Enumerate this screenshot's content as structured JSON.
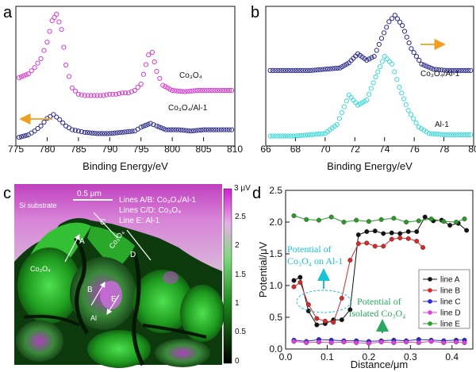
{
  "panel_labels": {
    "a": "a",
    "b": "b",
    "c": "c",
    "d": "d"
  },
  "colors": {
    "magenta": "#d63fd0",
    "navy": "#2d2d8a",
    "cyan": "#3fd8d8",
    "orange": "#f0a020",
    "cyan_text": "#19c3d6",
    "green_text": "#2aa860"
  },
  "chart_data": [
    {
      "panel": "a",
      "type": "scatter",
      "xlabel": "Binding Energy/eV",
      "xlim": [
        775,
        810
      ],
      "x_ticks": [
        775,
        780,
        785,
        790,
        795,
        800,
        805,
        810
      ],
      "series": [
        {
          "name": "Co3O4",
          "label": "Co₃O₄",
          "points": [
            [
              775.5,
              0.5
            ],
            [
              777,
              0.53
            ],
            [
              778,
              0.58
            ],
            [
              779,
              0.65
            ],
            [
              780,
              0.78
            ],
            [
              780.8,
              0.95
            ],
            [
              781.5,
              1.0
            ],
            [
              782.3,
              0.88
            ],
            [
              783,
              0.6
            ],
            [
              784,
              0.42
            ],
            [
              785,
              0.37
            ],
            [
              786,
              0.36
            ],
            [
              787,
              0.36
            ],
            [
              788,
              0.36
            ],
            [
              789,
              0.36
            ],
            [
              790,
              0.37
            ],
            [
              791,
              0.37
            ],
            [
              792,
              0.38
            ],
            [
              793,
              0.38
            ],
            [
              794,
              0.4
            ],
            [
              795,
              0.45
            ],
            [
              796.2,
              0.68
            ],
            [
              796.8,
              0.7
            ],
            [
              797.5,
              0.55
            ],
            [
              798.5,
              0.44
            ],
            [
              800,
              0.4
            ],
            [
              802,
              0.39
            ],
            [
              804,
              0.4
            ],
            [
              806,
              0.4
            ],
            [
              808,
              0.4
            ],
            [
              809.5,
              0.4
            ]
          ]
        },
        {
          "name": "Co3O4/Al-1",
          "label": "Co₃O₄/Al-1",
          "points": [
            [
              775.5,
              0.03
            ],
            [
              777,
              0.05
            ],
            [
              778,
              0.08
            ],
            [
              779,
              0.12
            ],
            [
              780,
              0.18
            ],
            [
              781,
              0.21
            ],
            [
              782,
              0.17
            ],
            [
              783,
              0.12
            ],
            [
              784,
              0.09
            ],
            [
              785,
              0.08
            ],
            [
              786,
              0.07
            ],
            [
              788,
              0.06
            ],
            [
              790,
              0.06
            ],
            [
              792,
              0.07
            ],
            [
              794,
              0.08
            ],
            [
              795,
              0.11
            ],
            [
              796.5,
              0.14
            ],
            [
              797.5,
              0.12
            ],
            [
              799,
              0.09
            ],
            [
              801,
              0.09
            ],
            [
              803,
              0.08
            ],
            [
              805,
              0.09
            ],
            [
              807,
              0.09
            ],
            [
              809.5,
              0.09
            ]
          ]
        }
      ]
    },
    {
      "panel": "b",
      "type": "scatter",
      "xlabel": "Binding Energy/eV",
      "xlim": [
        66,
        80
      ],
      "x_ticks": [
        66,
        68,
        70,
        72,
        74,
        76,
        78,
        80
      ],
      "series": [
        {
          "name": "Co3O4/Al-1",
          "label": "Co₃O₄/Al-1",
          "points": [
            [
              66.3,
              0.55
            ],
            [
              67,
              0.55
            ],
            [
              68,
              0.55
            ],
            [
              69,
              0.55
            ],
            [
              70,
              0.56
            ],
            [
              71,
              0.57
            ],
            [
              71.6,
              0.61
            ],
            [
              72.2,
              0.68
            ],
            [
              72.8,
              0.63
            ],
            [
              73.3,
              0.66
            ],
            [
              73.8,
              0.8
            ],
            [
              74.3,
              0.93
            ],
            [
              74.7,
              0.98
            ],
            [
              75.2,
              0.9
            ],
            [
              75.8,
              0.72
            ],
            [
              76.5,
              0.6
            ],
            [
              77.3,
              0.56
            ],
            [
              78.2,
              0.55
            ],
            [
              79,
              0.55
            ],
            [
              79.8,
              0.55
            ]
          ]
        },
        {
          "name": "Al-1",
          "label": "Al-1",
          "points": [
            [
              66.3,
              0.04
            ],
            [
              67,
              0.04
            ],
            [
              68,
              0.04
            ],
            [
              69,
              0.05
            ],
            [
              70,
              0.06
            ],
            [
              70.8,
              0.13
            ],
            [
              71.6,
              0.36
            ],
            [
              72.2,
              0.28
            ],
            [
              72.8,
              0.32
            ],
            [
              73.4,
              0.5
            ],
            [
              74.0,
              0.66
            ],
            [
              74.5,
              0.6
            ],
            [
              75.0,
              0.42
            ],
            [
              75.6,
              0.24
            ],
            [
              76.3,
              0.11
            ],
            [
              77,
              0.06
            ],
            [
              78,
              0.05
            ],
            [
              79,
              0.05
            ],
            [
              79.8,
              0.05
            ]
          ]
        }
      ]
    },
    {
      "panel": "d",
      "type": "line",
      "xlabel": "Distance/μm",
      "ylabel": "Potential/μV",
      "xlim": [
        0.0,
        0.45
      ],
      "ylim": [
        0.0,
        2.5
      ],
      "x_ticks": [
        0.0,
        0.1,
        0.2,
        0.3,
        0.4
      ],
      "y_ticks": [
        0.0,
        0.5,
        1.0,
        1.5,
        2.0,
        2.5
      ],
      "series": [
        {
          "name": "line A",
          "color": "#111111",
          "x": [
            0.02,
            0.035,
            0.055,
            0.075,
            0.095,
            0.115,
            0.135,
            0.155,
            0.175,
            0.195,
            0.215,
            0.235,
            0.255,
            0.275,
            0.295,
            0.315,
            0.335,
            0.355,
            0.375,
            0.395,
            0.415,
            0.435
          ],
          "y": [
            1.08,
            1.13,
            0.6,
            0.38,
            0.4,
            0.46,
            0.46,
            0.62,
            1.8,
            1.85,
            1.86,
            1.82,
            1.83,
            1.82,
            1.85,
            1.85,
            2.08,
            2.02,
            2.03,
            1.95,
            1.98,
            1.87
          ]
        },
        {
          "name": "line B",
          "color": "#d42a2a",
          "x": [
            0.02,
            0.035,
            0.055,
            0.075,
            0.095,
            0.115,
            0.135,
            0.155,
            0.175,
            0.195,
            0.215,
            0.235,
            0.255,
            0.275,
            0.295,
            0.315,
            0.33
          ],
          "y": [
            0.98,
            1.05,
            0.7,
            0.48,
            0.44,
            0.42,
            0.8,
            1.4,
            1.66,
            1.67,
            1.62,
            1.62,
            1.73,
            1.75,
            1.74,
            1.7,
            1.6
          ]
        },
        {
          "name": "line C",
          "color": "#2a2ad4",
          "x": [
            0.02,
            0.05,
            0.08,
            0.11,
            0.14,
            0.17,
            0.2,
            0.23,
            0.26,
            0.29,
            0.32,
            0.35,
            0.38,
            0.41,
            0.43
          ],
          "y": [
            0.14,
            0.12,
            0.15,
            0.14,
            0.13,
            0.13,
            0.12,
            0.13,
            0.14,
            0.13,
            0.15,
            0.14,
            0.13,
            0.14,
            0.14
          ]
        },
        {
          "name": "line D",
          "color": "#e040e0",
          "x": [
            0.02,
            0.05,
            0.08,
            0.11,
            0.14,
            0.17,
            0.2,
            0.23,
            0.26,
            0.29,
            0.32,
            0.35,
            0.38,
            0.41,
            0.43
          ],
          "y": [
            0.12,
            0.1,
            0.11,
            0.1,
            0.11,
            0.1,
            0.09,
            0.11,
            0.1,
            0.11,
            0.1,
            0.12,
            0.1,
            0.11,
            0.1
          ]
        },
        {
          "name": "line E",
          "color": "#2a9a2a",
          "x": [
            0.02,
            0.05,
            0.08,
            0.11,
            0.14,
            0.17,
            0.2,
            0.23,
            0.26,
            0.29,
            0.32,
            0.35,
            0.38,
            0.41,
            0.43
          ],
          "y": [
            2.1,
            2.04,
            2.03,
            2.08,
            2.0,
            2.03,
            2.01,
            2.04,
            2.06,
            2.0,
            2.02,
            2.05,
            2.01,
            2.0,
            2.05
          ]
        }
      ],
      "annotations": {
        "potential_co3o4_al1": [
          "Potential of",
          "Co₃O₄ on Al-1"
        ],
        "potential_isolated": [
          "Potential of",
          "isolated Co₃O₄"
        ]
      }
    }
  ],
  "panel_c": {
    "scale_bar": "0.5 μm",
    "substrate_label": "Si substrate",
    "legend_lines": [
      "Lines A/B: Co₃O₄/Al-1",
      "Lines C/D: Co₃O₄",
      "Line E: Al-1"
    ],
    "region_labels": {
      "co3o4_left": "Co₃O₄",
      "co3o4_top": "Co₃O₄",
      "al": "Al"
    },
    "line_letters": [
      "A",
      "B",
      "C",
      "D",
      "E"
    ],
    "colorbar_top": "3 μV",
    "colorbar_ticks": [
      "2.5",
      "2",
      "1.5",
      "1",
      "0.5",
      "0"
    ]
  }
}
